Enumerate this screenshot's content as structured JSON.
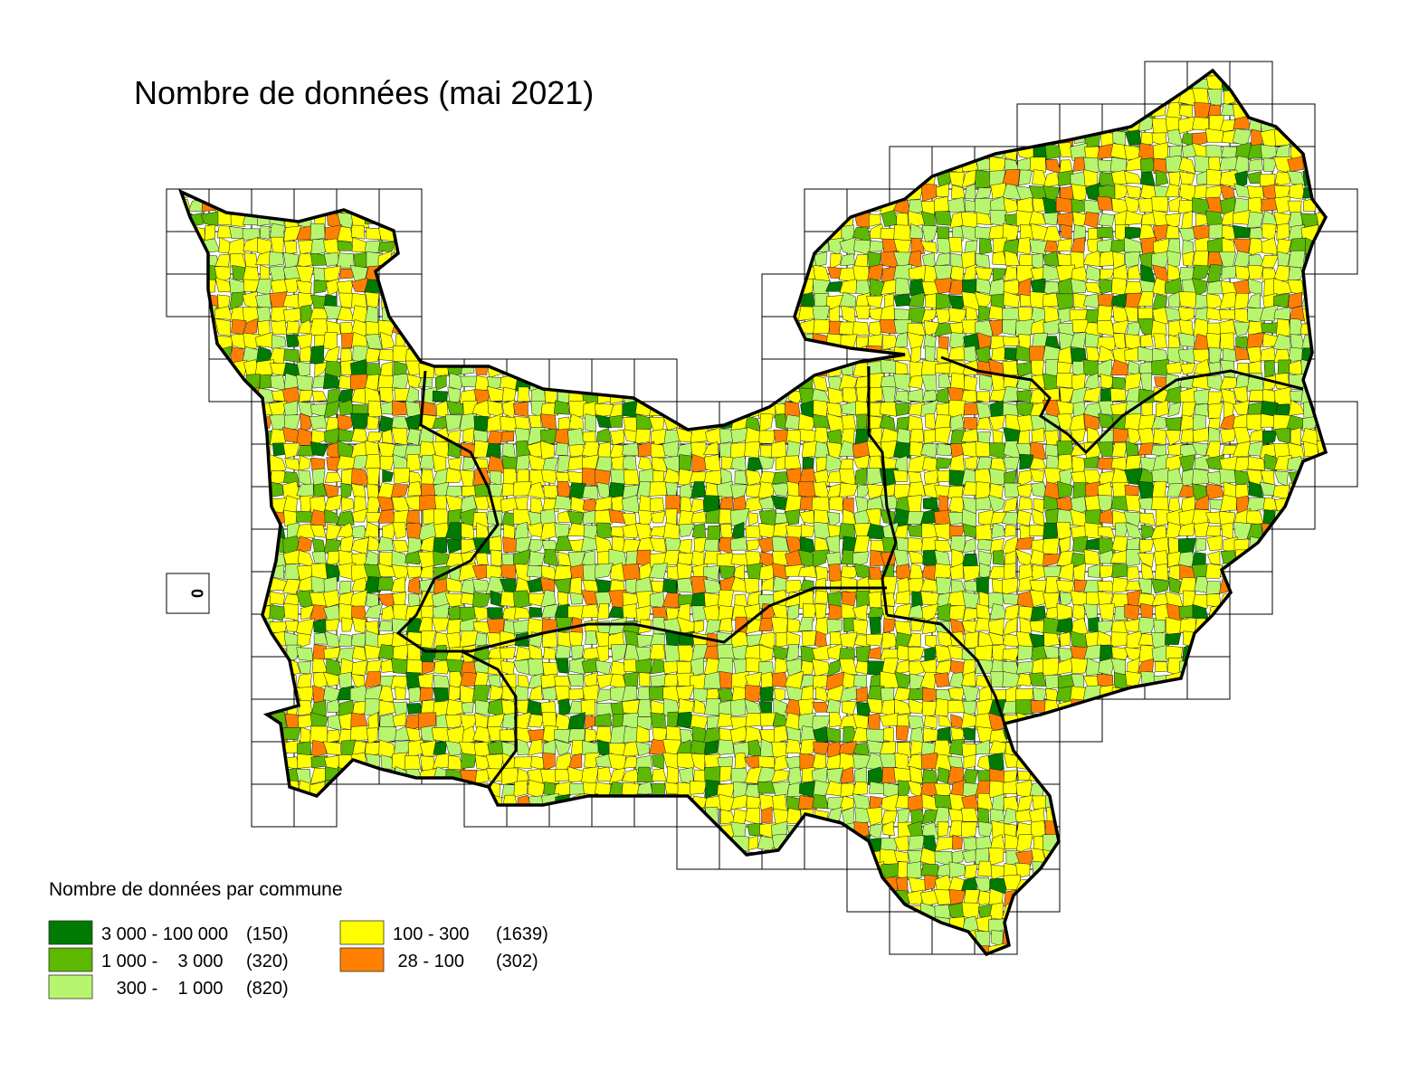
{
  "title": "Nombre de données (mai 2021)",
  "inset_label": "0",
  "legend": {
    "title": "Nombre de données par commune",
    "items": [
      {
        "range": "3 000 - 100 000",
        "count": "(150)",
        "color": "#007a00"
      },
      {
        "range": "1 000 -    3 000",
        "count": "(320)",
        "color": "#5cb800"
      },
      {
        "range": "   300 -    1 000",
        "count": "(820)",
        "color": "#b8f56e"
      },
      {
        "range": "100 - 300",
        "count": "(1639)",
        "color": "#ffff00"
      },
      {
        "range": " 28 - 100   ",
        "count": "(302)",
        "color": "#ff8000"
      }
    ]
  }
}
